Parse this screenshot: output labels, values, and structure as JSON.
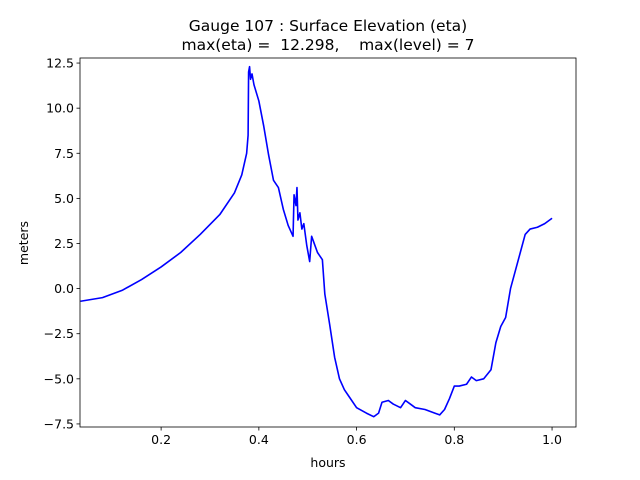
{
  "chart_data": {
    "type": "line",
    "title": "Gauge 107 : Surface Elevation (eta)",
    "subtitle": "max(eta) =  12.298,    max(level) = 7",
    "x_label": "hours",
    "y_label": "meters",
    "color": "#0000ff",
    "xlim": [
      0.034,
      1.049
    ],
    "ylim": [
      -7.67,
      12.78
    ],
    "xticks": [
      0.2,
      0.4,
      0.6,
      0.8,
      {
        "value": 1,
        "label": "1.0"
      }
    ],
    "yticks": [
      {
        "value": -7.5,
        "label": "−7.5"
      },
      {
        "value": -5,
        "label": "−5.0"
      },
      {
        "value": -2.5,
        "label": "−2.5"
      },
      {
        "value": 0,
        "label": "0.0"
      },
      2.5,
      {
        "value": 5,
        "label": "5.0"
      },
      7.5,
      {
        "value": 10,
        "label": "10.0"
      },
      12.5
    ],
    "x": [
      0.035,
      0.08,
      0.12,
      0.16,
      0.2,
      0.24,
      0.28,
      0.32,
      0.35,
      0.365,
      0.375,
      0.378,
      0.379,
      0.381,
      0.383,
      0.386,
      0.39,
      0.4,
      0.41,
      0.42,
      0.43,
      0.44,
      0.45,
      0.46,
      0.47,
      0.472,
      0.476,
      0.478,
      0.48,
      0.484,
      0.488,
      0.492,
      0.498,
      0.504,
      0.508,
      0.512,
      0.52,
      0.53,
      0.535,
      0.545,
      0.555,
      0.565,
      0.575,
      0.585,
      0.6,
      0.62,
      0.635,
      0.645,
      0.652,
      0.665,
      0.675,
      0.69,
      0.7,
      0.71,
      0.72,
      0.74,
      0.76,
      0.77,
      0.78,
      0.79,
      0.8,
      0.81,
      0.825,
      0.835,
      0.845,
      0.86,
      0.875,
      0.885,
      0.895,
      0.905,
      0.915,
      0.925,
      0.935,
      0.945,
      0.955,
      0.97,
      0.985,
      1.0
    ],
    "values": [
      -0.7,
      -0.5,
      -0.1,
      0.5,
      1.2,
      2.0,
      3.0,
      4.1,
      5.3,
      6.3,
      7.5,
      8.5,
      12.0,
      12.3,
      11.6,
      11.9,
      11.3,
      10.4,
      9.0,
      7.4,
      6.0,
      5.6,
      4.4,
      3.5,
      2.9,
      5.2,
      4.6,
      5.6,
      3.8,
      4.2,
      3.3,
      3.6,
      2.4,
      1.5,
      2.9,
      2.6,
      2.0,
      1.6,
      -0.3,
      -2.0,
      -3.8,
      -5.0,
      -5.6,
      -6.0,
      -6.6,
      -6.9,
      -7.1,
      -6.9,
      -6.3,
      -6.2,
      -6.4,
      -6.6,
      -6.2,
      -6.4,
      -6.6,
      -6.7,
      -6.9,
      -7.0,
      -6.7,
      -6.1,
      -5.4,
      -5.4,
      -5.3,
      -4.9,
      -5.1,
      -5.0,
      -4.5,
      -3.0,
      -2.1,
      -1.6,
      0.0,
      1.0,
      2.0,
      3.0,
      3.3,
      3.4,
      3.6,
      3.9
    ]
  }
}
